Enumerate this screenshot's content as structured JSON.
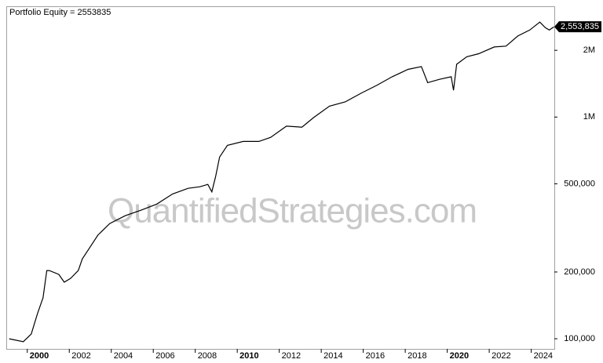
{
  "chart_data": {
    "type": "line",
    "title": "Portfolio Equity = 2553835",
    "watermark": "QuantifiedStrategies.com",
    "log_scale": true,
    "color": "#000000",
    "x": [
      1999.14,
      1999.81,
      2000.19,
      2000.49,
      2000.75,
      2000.93,
      2001.05,
      2001.5,
      2001.76,
      2002.06,
      2002.43,
      2002.62,
      2002.99,
      2003.36,
      2003.93,
      2004.67,
      2005.42,
      2006.17,
      2006.92,
      2007.66,
      2008.22,
      2008.6,
      2008.79,
      2008.97,
      2009.16,
      2009.53,
      2010.28,
      2011.03,
      2011.59,
      2012.34,
      2013.08,
      2013.64,
      2014.39,
      2015.14,
      2015.89,
      2016.64,
      2017.38,
      2018.13,
      2018.77,
      2019.07,
      2019.63,
      2020.19,
      2020.3,
      2020.45,
      2020.93,
      2021.5,
      2022.24,
      2022.8,
      2023.36,
      2023.93,
      2024.41,
      2024.67,
      2024.86,
      2025.08
    ],
    "values": [
      100000,
      97000,
      105000,
      130000,
      153000,
      203000,
      203000,
      195000,
      180000,
      187000,
      203000,
      229000,
      259000,
      293000,
      331000,
      359000,
      380000,
      405000,
      450000,
      477000,
      485000,
      497000,
      460000,
      539000,
      660000,
      745000,
      776000,
      776000,
      810000,
      910000,
      900000,
      995000,
      1120000,
      1170000,
      1280000,
      1390000,
      1520000,
      1640000,
      1690000,
      1430000,
      1480000,
      1520000,
      1320000,
      1730000,
      1870000,
      1930000,
      2070000,
      2090000,
      2320000,
      2470000,
      2680000,
      2530000,
      2470000,
      2553835
    ],
    "xlim": [
      1999.0,
      2025.1
    ],
    "xticks": [
      2000,
      2002,
      2004,
      2006,
      2008,
      2010,
      2012,
      2014,
      2016,
      2018,
      2020,
      2022,
      2024
    ],
    "ylim": [
      90000,
      3160000
    ],
    "yticks": [
      {
        "value": 100000,
        "label": "100,000"
      },
      {
        "value": 200000,
        "label": "200,000"
      },
      {
        "value": 500000,
        "label": "500,000"
      },
      {
        "value": 1000000,
        "label": "1M"
      },
      {
        "value": 2000000,
        "label": "2M"
      }
    ],
    "annotations": [
      {
        "text": "2,553,835",
        "value": 2553835
      }
    ]
  }
}
